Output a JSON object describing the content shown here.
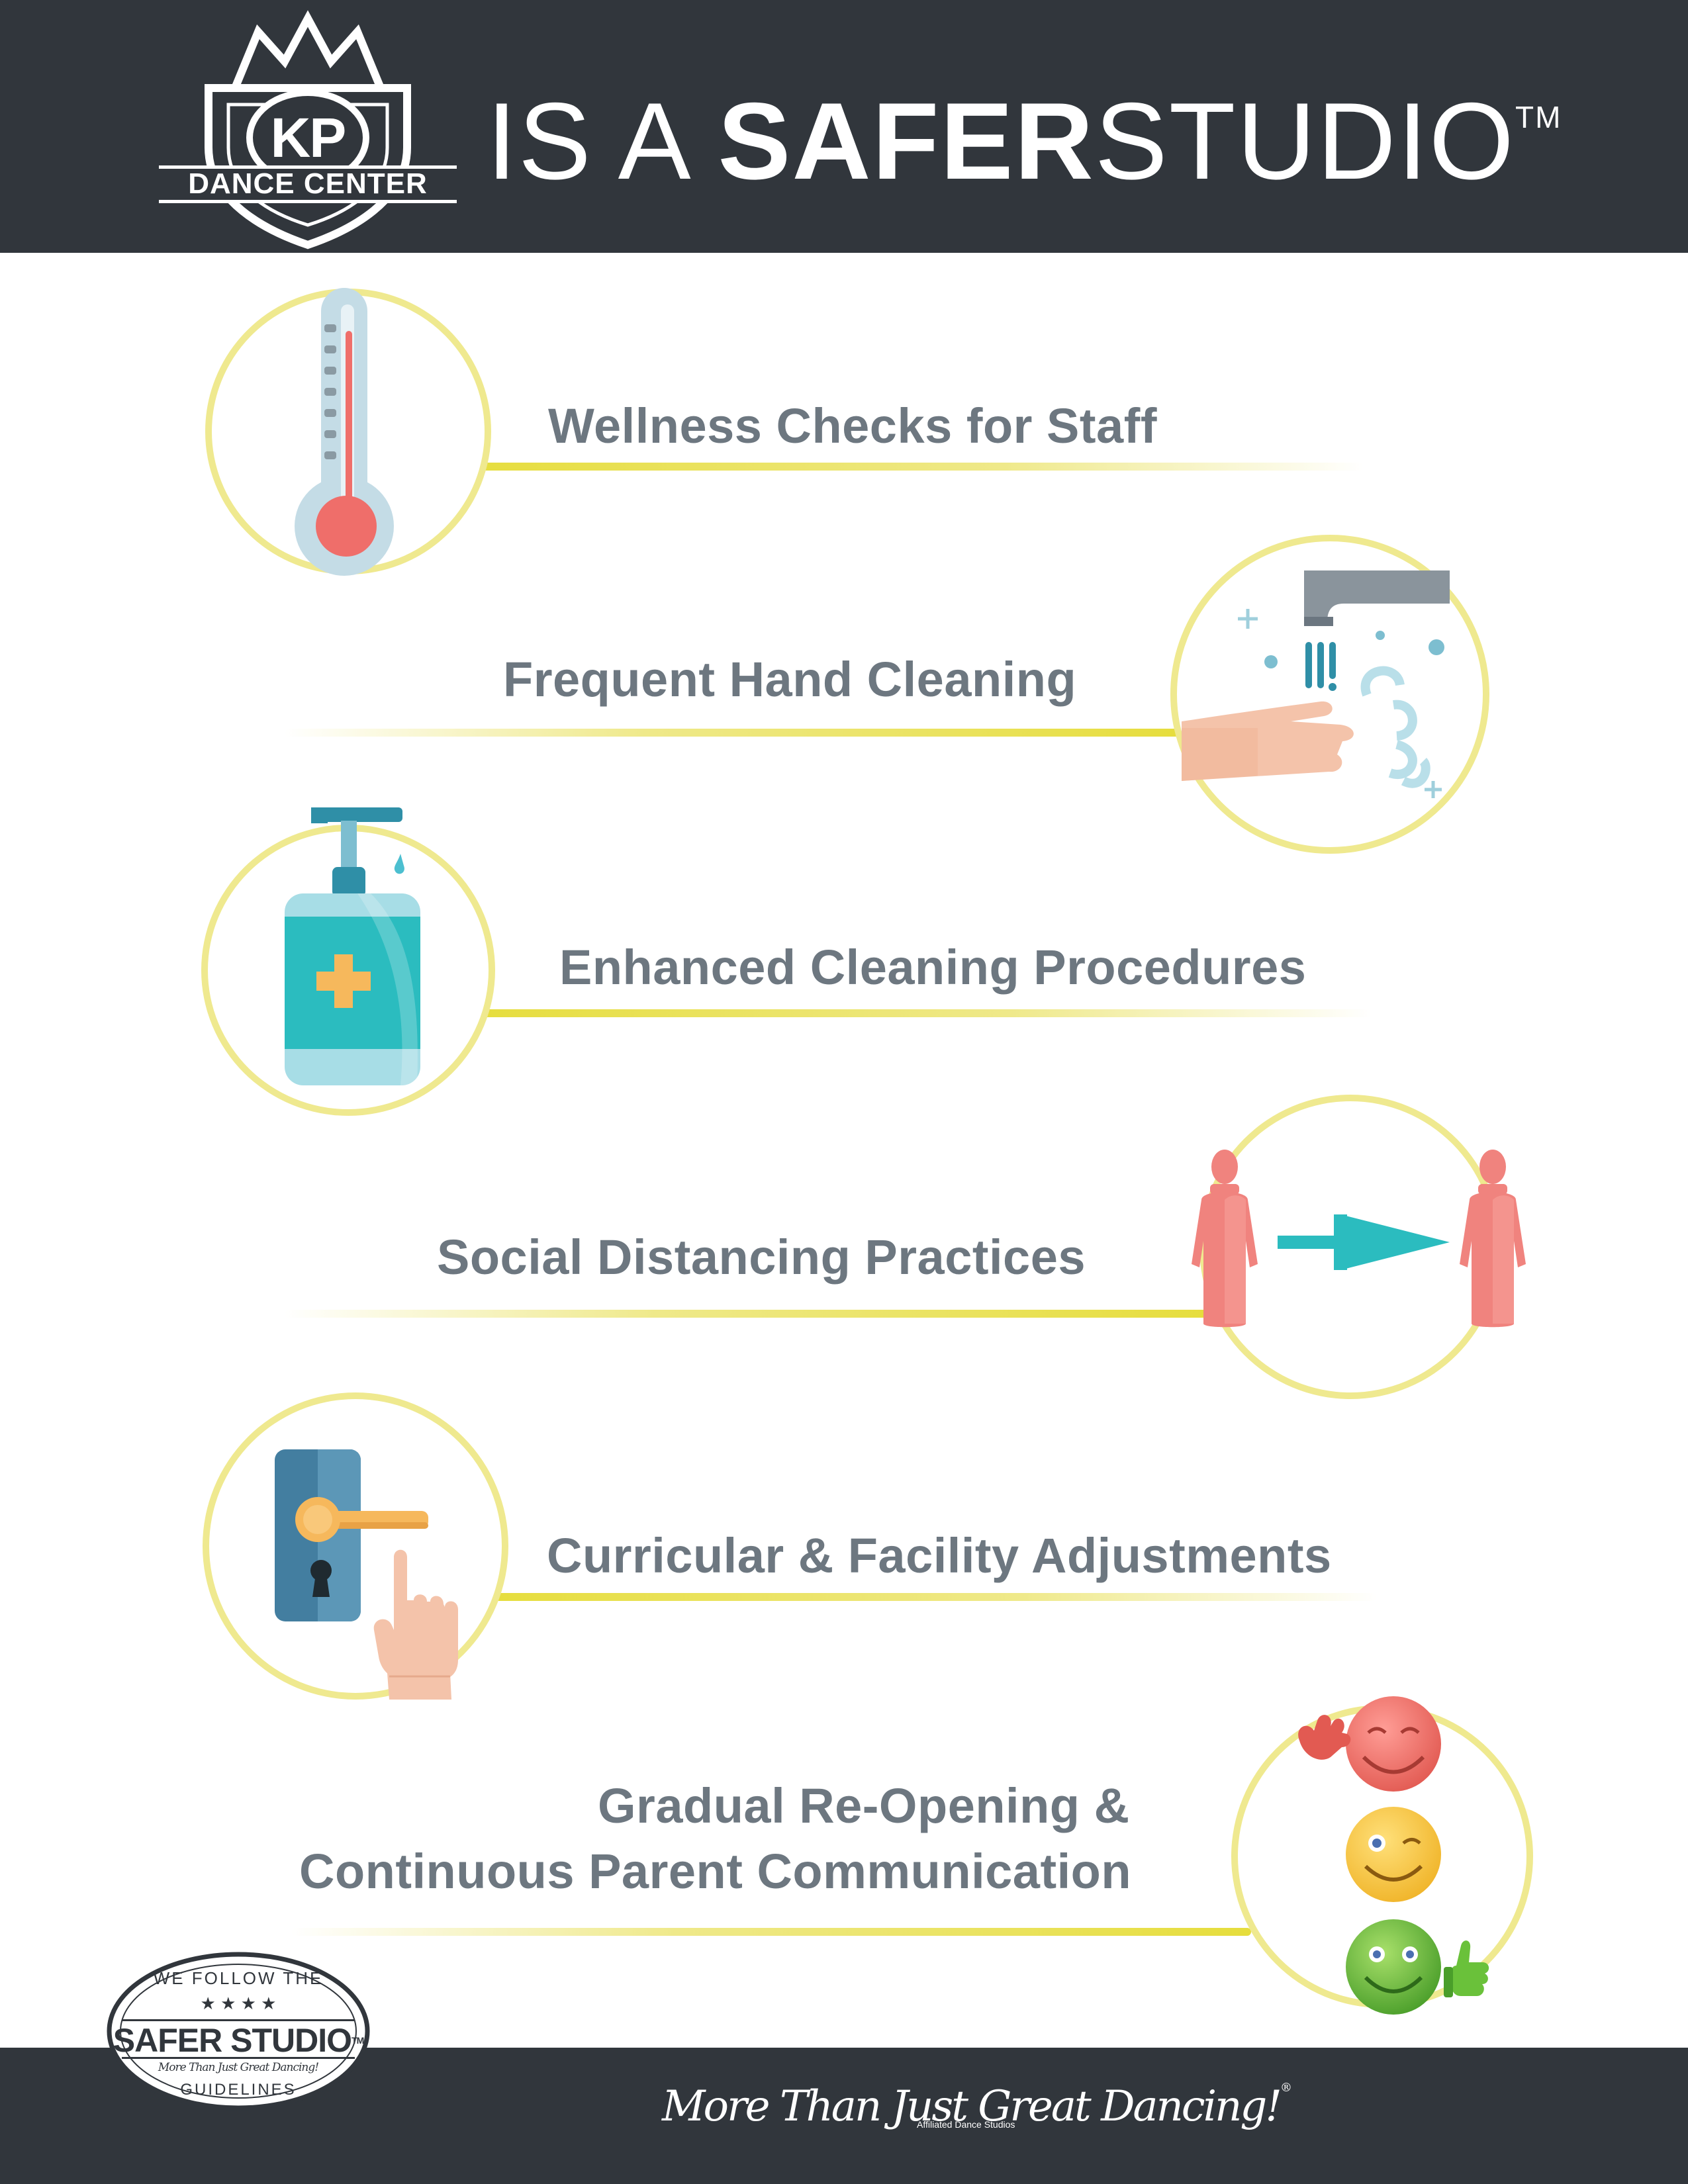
{
  "header": {
    "logo": {
      "initials": "KP",
      "subtitle": "DANCE CENTER"
    },
    "headline": {
      "prefix": "IS A ",
      "bold": "SAFER",
      "rest": "STUDIO",
      "trademark": "TM"
    }
  },
  "items": [
    {
      "label": "Wellness Checks for Staff",
      "icon": "thermometer-icon"
    },
    {
      "label": "Frequent Hand Cleaning",
      "icon": "hand-washing-icon"
    },
    {
      "label": "Enhanced Cleaning Procedures",
      "icon": "sanitizer-bottle-icon"
    },
    {
      "label": "Social Distancing Practices",
      "icon": "social-distancing-icon"
    },
    {
      "label": "Curricular & Facility Adjustments",
      "icon": "door-handle-icon"
    },
    {
      "label_line1": "Gradual Re-Opening &",
      "label_line2": "Continuous Parent Communication",
      "icon": "smiley-faces-icon"
    }
  ],
  "badge": {
    "top": "WE FOLLOW THE",
    "stars": "★ ★ ★ ★",
    "title": "SAFER STUDIO",
    "trademark": "TM",
    "script": "More Than Just Great Dancing!",
    "bottom": "GUIDELINES"
  },
  "footer": {
    "tagline": "More Than Just Great Dancing!",
    "registered": "®",
    "subtitle": "Affiliated Dance Studios"
  },
  "colors": {
    "header_bg": "#31363c",
    "text_gray": "#6d7780",
    "accent_yellow": "#e6dd3c",
    "ring_yellow": "#efe98f",
    "teal": "#2bbcbf",
    "coral": "#f0837e"
  }
}
